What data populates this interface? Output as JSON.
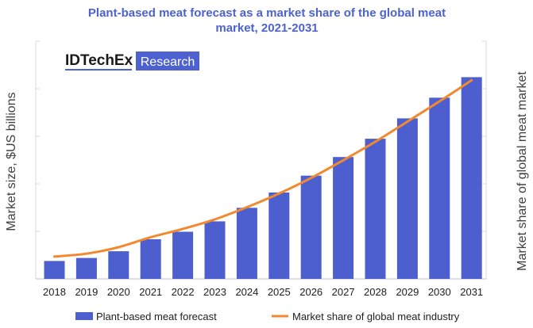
{
  "chart_data": {
    "type": "bar",
    "title_line1": "Plant-based meat forecast as a market share of the global meat",
    "title_line2": "market, 2021-2031",
    "ylabel": "Market size, $US billions",
    "y2label": "Market share of global meat market",
    "categories": [
      "2018",
      "2019",
      "2020",
      "2021",
      "2022",
      "2023",
      "2024",
      "2025",
      "2026",
      "2027",
      "2028",
      "2029",
      "2030",
      "2031"
    ],
    "series": [
      {
        "name": "Plant-based meat forecast",
        "kind": "bar",
        "color": "#4d5fcf",
        "values": [
          0.088,
          0.103,
          0.136,
          0.195,
          0.232,
          0.283,
          0.35,
          0.425,
          0.508,
          0.6,
          0.69,
          0.79,
          0.892,
          0.993
        ]
      },
      {
        "name": "Market share of global meat industry",
        "kind": "line",
        "color": "#f2892e",
        "values": [
          0.11,
          0.124,
          0.156,
          0.205,
          0.246,
          0.293,
          0.353,
          0.42,
          0.497,
          0.584,
          0.675,
          0.774,
          0.874,
          0.978
        ]
      }
    ],
    "ylim": [
      0,
      1.17
    ],
    "y_units": "relative scale (axes carry no printed numeric tick labels)",
    "grid": false,
    "legend_position": "bottom"
  },
  "logo": {
    "brand": "IDTechEx",
    "product": "Research"
  }
}
